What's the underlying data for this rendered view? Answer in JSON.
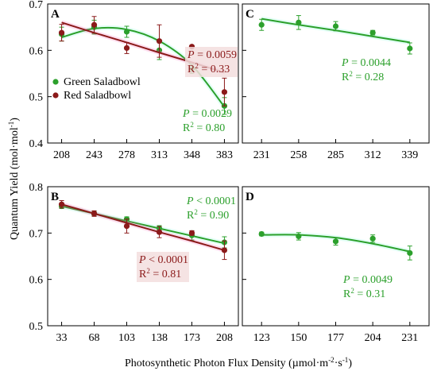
{
  "figure": {
    "ylabel": "Quantum Yield (mol·mol",
    "ylabel_sup": "-1",
    "ylabel_close": ")",
    "xlabel": "Photosynthetic Photon Flux Density (µmol·m",
    "xlabel_sup1": "-2",
    "xlabel_mid": "·s",
    "xlabel_sup2": "-1",
    "xlabel_close": ")"
  },
  "colors": {
    "green": "#2ca02c",
    "red": "#8b1a1a",
    "axis": "#000000",
    "band_green": "#7fffd4",
    "band_red": "#ff69b4"
  },
  "legend": [
    {
      "name": "Green Saladbowl",
      "color": "#2ca02c"
    },
    {
      "name": "Red Saladbowl",
      "color": "#8b1a1a"
    }
  ],
  "chart_data": [
    {
      "panel": "A",
      "type": "scatter",
      "x_ticks": [
        208,
        243,
        278,
        313,
        348,
        383
      ],
      "xlim": [
        193,
        398
      ],
      "ylim": [
        0.4,
        0.7
      ],
      "y_ticks": [
        0.4,
        0.5,
        0.6,
        0.7
      ],
      "show_y_ticklabels": true,
      "show_legend": true,
      "series": [
        {
          "name": "Green Saladbowl",
          "color": "green",
          "x": [
            208,
            243,
            278,
            313,
            348,
            383
          ],
          "y": [
            0.635,
            0.65,
            0.64,
            0.6,
            0.56,
            0.48
          ],
          "err": [
            0.015,
            0.015,
            0.012,
            0.02,
            0.01,
            0.018
          ],
          "fit": "quadratic",
          "fit_y": [
            0.628,
            0.647,
            0.645,
            0.62,
            0.568,
            0.478
          ],
          "annot_p_label": "P",
          "annot_p": " = 0.0029",
          "annot_r2_label": "R",
          "annot_r2": " = 0.80",
          "annot_sup": "2"
        },
        {
          "name": "Red Saladbowl",
          "color": "red",
          "x": [
            208,
            243,
            278,
            313,
            348,
            383
          ],
          "y": [
            0.638,
            0.655,
            0.605,
            0.62,
            0.608,
            0.51
          ],
          "err": [
            0.018,
            0.018,
            0.012,
            0.035,
            0.0,
            0.03
          ],
          "fit": "linear",
          "fit_y": [
            0.66,
            0.638,
            0.617,
            0.595,
            0.574,
            0.552
          ],
          "annot_p_label": "P",
          "annot_p": " = 0.0059",
          "annot_r2_label": "R",
          "annot_r2": " = 0.33",
          "annot_sup": "2"
        }
      ]
    },
    {
      "panel": "C",
      "type": "scatter",
      "x_ticks": [
        231,
        258,
        285,
        312,
        339
      ],
      "xlim": [
        217,
        353
      ],
      "ylim": [
        0.4,
        0.7
      ],
      "y_ticks": [
        0.4,
        0.5,
        0.6,
        0.7
      ],
      "show_y_ticklabels": false,
      "series": [
        {
          "name": "Green Saladbowl",
          "color": "green",
          "x": [
            231,
            258,
            285,
            312,
            339
          ],
          "y": [
            0.655,
            0.66,
            0.652,
            0.638,
            0.604
          ],
          "err": [
            0.012,
            0.015,
            0.01,
            0.005,
            0.012
          ],
          "fit": "linear",
          "fit_y": [
            0.668,
            0.655,
            0.643,
            0.63,
            0.617
          ],
          "annot_p_label": "P",
          "annot_p": " = 0.0044",
          "annot_r2_label": "R",
          "annot_r2": " = 0.28",
          "annot_sup": "2"
        }
      ]
    },
    {
      "panel": "B",
      "type": "scatter",
      "x_ticks": [
        33,
        68,
        103,
        138,
        173,
        208
      ],
      "xlim": [
        18,
        223
      ],
      "ylim": [
        0.5,
        0.8
      ],
      "y_ticks": [
        0.5,
        0.6,
        0.7,
        0.8
      ],
      "show_y_ticklabels": true,
      "series": [
        {
          "name": "Green Saladbowl",
          "color": "green",
          "x": [
            33,
            68,
            103,
            138,
            173,
            208
          ],
          "y": [
            0.758,
            0.742,
            0.73,
            0.71,
            0.695,
            0.68
          ],
          "err": [
            0.005,
            0.005,
            0.005,
            0.006,
            0.01,
            0.012
          ],
          "fit": "linear",
          "fit_y": [
            0.758,
            0.742,
            0.726,
            0.71,
            0.694,
            0.678
          ],
          "annot_p_label": "P",
          "annot_p": " < 0.0001",
          "annot_r2_label": "R",
          "annot_r2": " = 0.90",
          "annot_sup": "2"
        },
        {
          "name": "Red Saladbowl",
          "color": "red",
          "x": [
            33,
            68,
            103,
            138,
            173,
            208
          ],
          "y": [
            0.762,
            0.742,
            0.715,
            0.702,
            0.7,
            0.663
          ],
          "err": [
            0.008,
            0.006,
            0.015,
            0.012,
            0.005,
            0.02
          ],
          "fit": "linear",
          "fit_y": [
            0.762,
            0.742,
            0.722,
            0.702,
            0.683,
            0.663
          ],
          "annot_p_label": "P",
          "annot_p": " < 0.0001",
          "annot_r2_label": "R",
          "annot_r2": " = 0.81",
          "annot_sup": "2"
        }
      ]
    },
    {
      "panel": "D",
      "type": "scatter",
      "x_ticks": [
        123,
        150,
        177,
        204,
        231
      ],
      "xlim": [
        109,
        245
      ],
      "ylim": [
        0.5,
        0.8
      ],
      "y_ticks": [
        0.5,
        0.6,
        0.7,
        0.8
      ],
      "show_y_ticklabels": false,
      "series": [
        {
          "name": "Green Saladbowl",
          "color": "green",
          "x": [
            123,
            150,
            177,
            204,
            231
          ],
          "y": [
            0.698,
            0.693,
            0.682,
            0.688,
            0.657
          ],
          "err": [
            0.004,
            0.008,
            0.008,
            0.008,
            0.015
          ],
          "fit": "quadratic",
          "fit_y": [
            0.696,
            0.696,
            0.69,
            0.677,
            0.66
          ],
          "annot_p_label": "P",
          "annot_p": " = 0.0049",
          "annot_r2_label": "R",
          "annot_r2": " = 0.31",
          "annot_sup": "2"
        }
      ]
    }
  ]
}
